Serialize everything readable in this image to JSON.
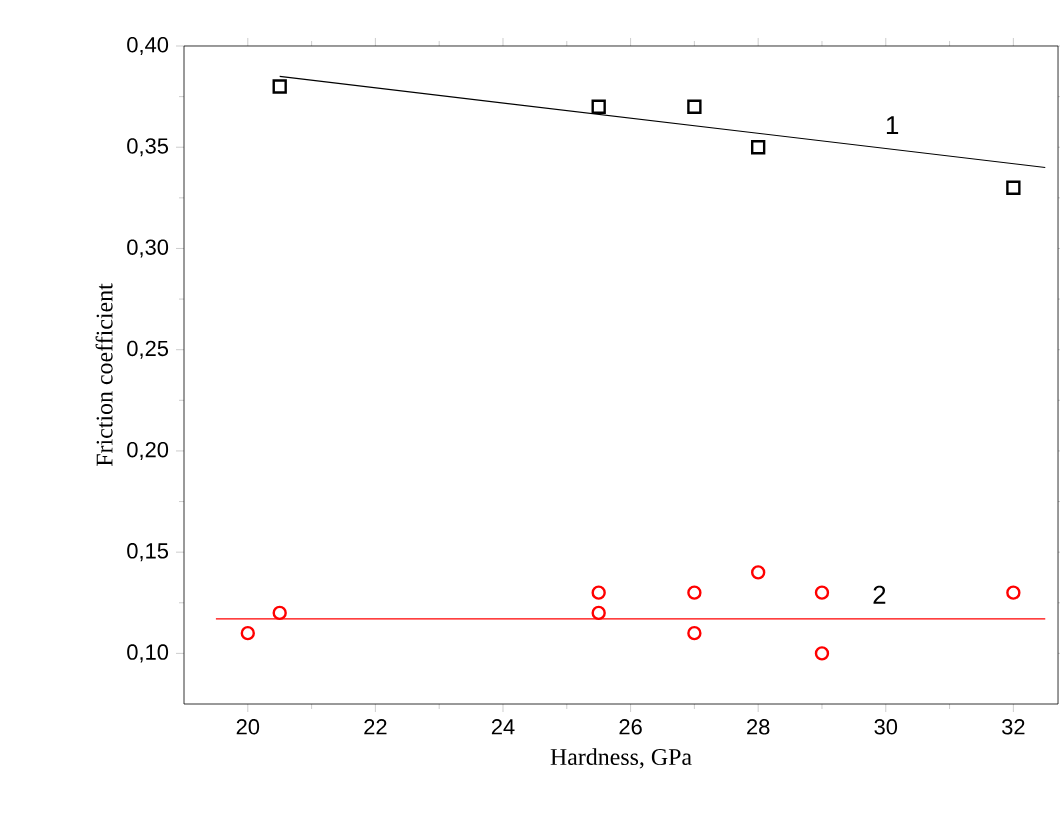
{
  "chart_data": {
    "type": "scatter",
    "xlabel": "Hardness, GPa",
    "ylabel": "Friction coefficient",
    "xlim": [
      19,
      32.7
    ],
    "ylim": [
      0.075,
      0.4
    ],
    "xticks": [
      20,
      22,
      24,
      26,
      28,
      30,
      32
    ],
    "yticks": [
      {
        "value": 0.1,
        "label": "0,10"
      },
      {
        "value": 0.15,
        "label": "0,15"
      },
      {
        "value": 0.2,
        "label": "0,20"
      },
      {
        "value": 0.25,
        "label": "0,25"
      },
      {
        "value": 0.3,
        "label": "0,30"
      },
      {
        "value": 0.35,
        "label": "0,35"
      },
      {
        "value": 0.4,
        "label": "0,40"
      }
    ],
    "grid": false,
    "annotations": [
      "1",
      "2"
    ],
    "series": [
      {
        "marker": "square",
        "color": "#000000",
        "x": [
          20.5,
          25.5,
          27,
          28,
          32
        ],
        "values": [
          0.38,
          0.37,
          0.37,
          0.35,
          0.33
        ]
      },
      {
        "marker": "circle",
        "color": "#ff0000",
        "x": [
          20,
          20.5,
          25.5,
          25.5,
          27,
          27,
          28,
          29,
          29,
          32
        ],
        "values": [
          0.11,
          0.12,
          0.13,
          0.12,
          0.13,
          0.11,
          0.14,
          0.13,
          0.1,
          0.13
        ]
      },
      {
        "type": "line",
        "marker": "none",
        "color": "#000000",
        "x": [
          20.5,
          32.5
        ],
        "values": [
          0.385,
          0.34
        ]
      },
      {
        "type": "line",
        "marker": "none",
        "color": "#ff0000",
        "x": [
          19.5,
          32.5
        ],
        "values": [
          0.117,
          0.117
        ]
      }
    ]
  }
}
